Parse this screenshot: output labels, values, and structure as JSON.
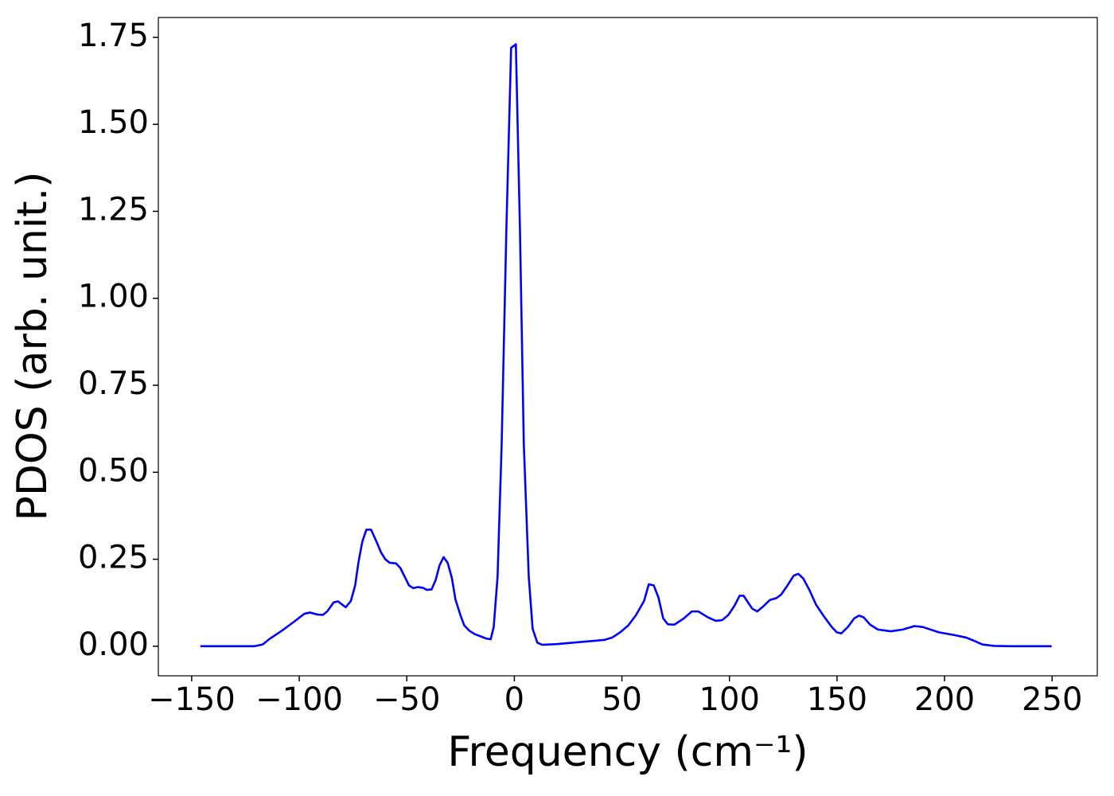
{
  "chart_data": {
    "type": "line",
    "xlabel": "Frequency (cm⁻¹)",
    "ylabel": "PDOS (arb. unit.)",
    "x": [
      -146,
      -121,
      -117,
      -114,
      -108,
      -102.5,
      -97.7,
      -95,
      -91.4,
      -89,
      -87,
      -84,
      -82,
      -78.4,
      -76,
      -74,
      -72.5,
      -70.7,
      -68.8,
      -66.6,
      -64.4,
      -62,
      -60,
      -58,
      -55,
      -53,
      -51.4,
      -49,
      -47,
      -44.8,
      -42.5,
      -40.7,
      -38.5,
      -36.6,
      -34.8,
      -32.9,
      -31,
      -29,
      -27.4,
      -25,
      -23.3,
      -21,
      -18.5,
      -15.5,
      -13,
      -11,
      -9.6,
      -7.8,
      -5.9,
      -3.7,
      -1.5,
      0.7,
      2.6,
      4.4,
      6.7,
      8.5,
      10.7,
      13,
      19.6,
      30.7,
      41.8,
      45.5,
      49.2,
      53,
      56.6,
      60.3,
      62.5,
      64.8,
      67,
      69.2,
      71.4,
      74.4,
      78.8,
      82.5,
      85.5,
      90,
      93.6,
      96.6,
      99.5,
      102.5,
      104.7,
      106.6,
      108.4,
      110.6,
      112.9,
      115.8,
      118.8,
      121.7,
      124,
      127,
      129.9,
      132,
      134.3,
      137.3,
      140.2,
      144,
      147.6,
      149.9,
      152,
      155,
      158,
      160.2,
      162.4,
      165.4,
      169,
      175,
      180.6,
      186,
      190,
      197.4,
      204.6,
      210,
      214,
      217.6,
      223,
      230.4,
      249.8
    ],
    "series": [
      {
        "name": "PDOS",
        "color": "#0000ff",
        "values": [
          0,
          0,
          0.005,
          0.02,
          0.045,
          0.07,
          0.093,
          0.097,
          0.091,
          0.09,
          0.1,
          0.126,
          0.129,
          0.112,
          0.13,
          0.175,
          0.24,
          0.3,
          0.335,
          0.335,
          0.305,
          0.27,
          0.25,
          0.24,
          0.238,
          0.225,
          0.205,
          0.175,
          0.167,
          0.17,
          0.168,
          0.162,
          0.163,
          0.19,
          0.232,
          0.256,
          0.24,
          0.195,
          0.135,
          0.088,
          0.06,
          0.045,
          0.035,
          0.028,
          0.022,
          0.02,
          0.055,
          0.2,
          0.58,
          1.2,
          1.72,
          1.73,
          1.2,
          0.58,
          0.2,
          0.05,
          0.01,
          0.004,
          0.006,
          0.012,
          0.018,
          0.025,
          0.04,
          0.06,
          0.09,
          0.13,
          0.178,
          0.175,
          0.14,
          0.08,
          0.063,
          0.062,
          0.08,
          0.1,
          0.1,
          0.083,
          0.073,
          0.075,
          0.09,
          0.118,
          0.145,
          0.145,
          0.128,
          0.108,
          0.1,
          0.115,
          0.133,
          0.138,
          0.148,
          0.175,
          0.203,
          0.208,
          0.195,
          0.16,
          0.12,
          0.085,
          0.055,
          0.04,
          0.037,
          0.055,
          0.08,
          0.088,
          0.083,
          0.062,
          0.048,
          0.043,
          0.048,
          0.058,
          0.055,
          0.04,
          0.032,
          0.025,
          0.015,
          0.005,
          0.001,
          0,
          0
        ]
      }
    ],
    "xlim": [
      -165.5,
      271
    ],
    "ylim": [
      -0.085,
      1.807
    ],
    "xticks": [
      {
        "value": -150,
        "label": "−150"
      },
      {
        "value": -100,
        "label": "−100"
      },
      {
        "value": -50,
        "label": "−50"
      },
      0,
      50,
      100,
      150,
      200,
      250
    ],
    "yticks": [
      {
        "value": 0,
        "label": "0.00"
      },
      0.25,
      {
        "value": 0.5,
        "label": "0.50"
      },
      0.75,
      {
        "value": 1,
        "label": "1.00"
      },
      1.25,
      {
        "value": 1.5,
        "label": "1.50"
      },
      1.75
    ],
    "grid": false
  }
}
